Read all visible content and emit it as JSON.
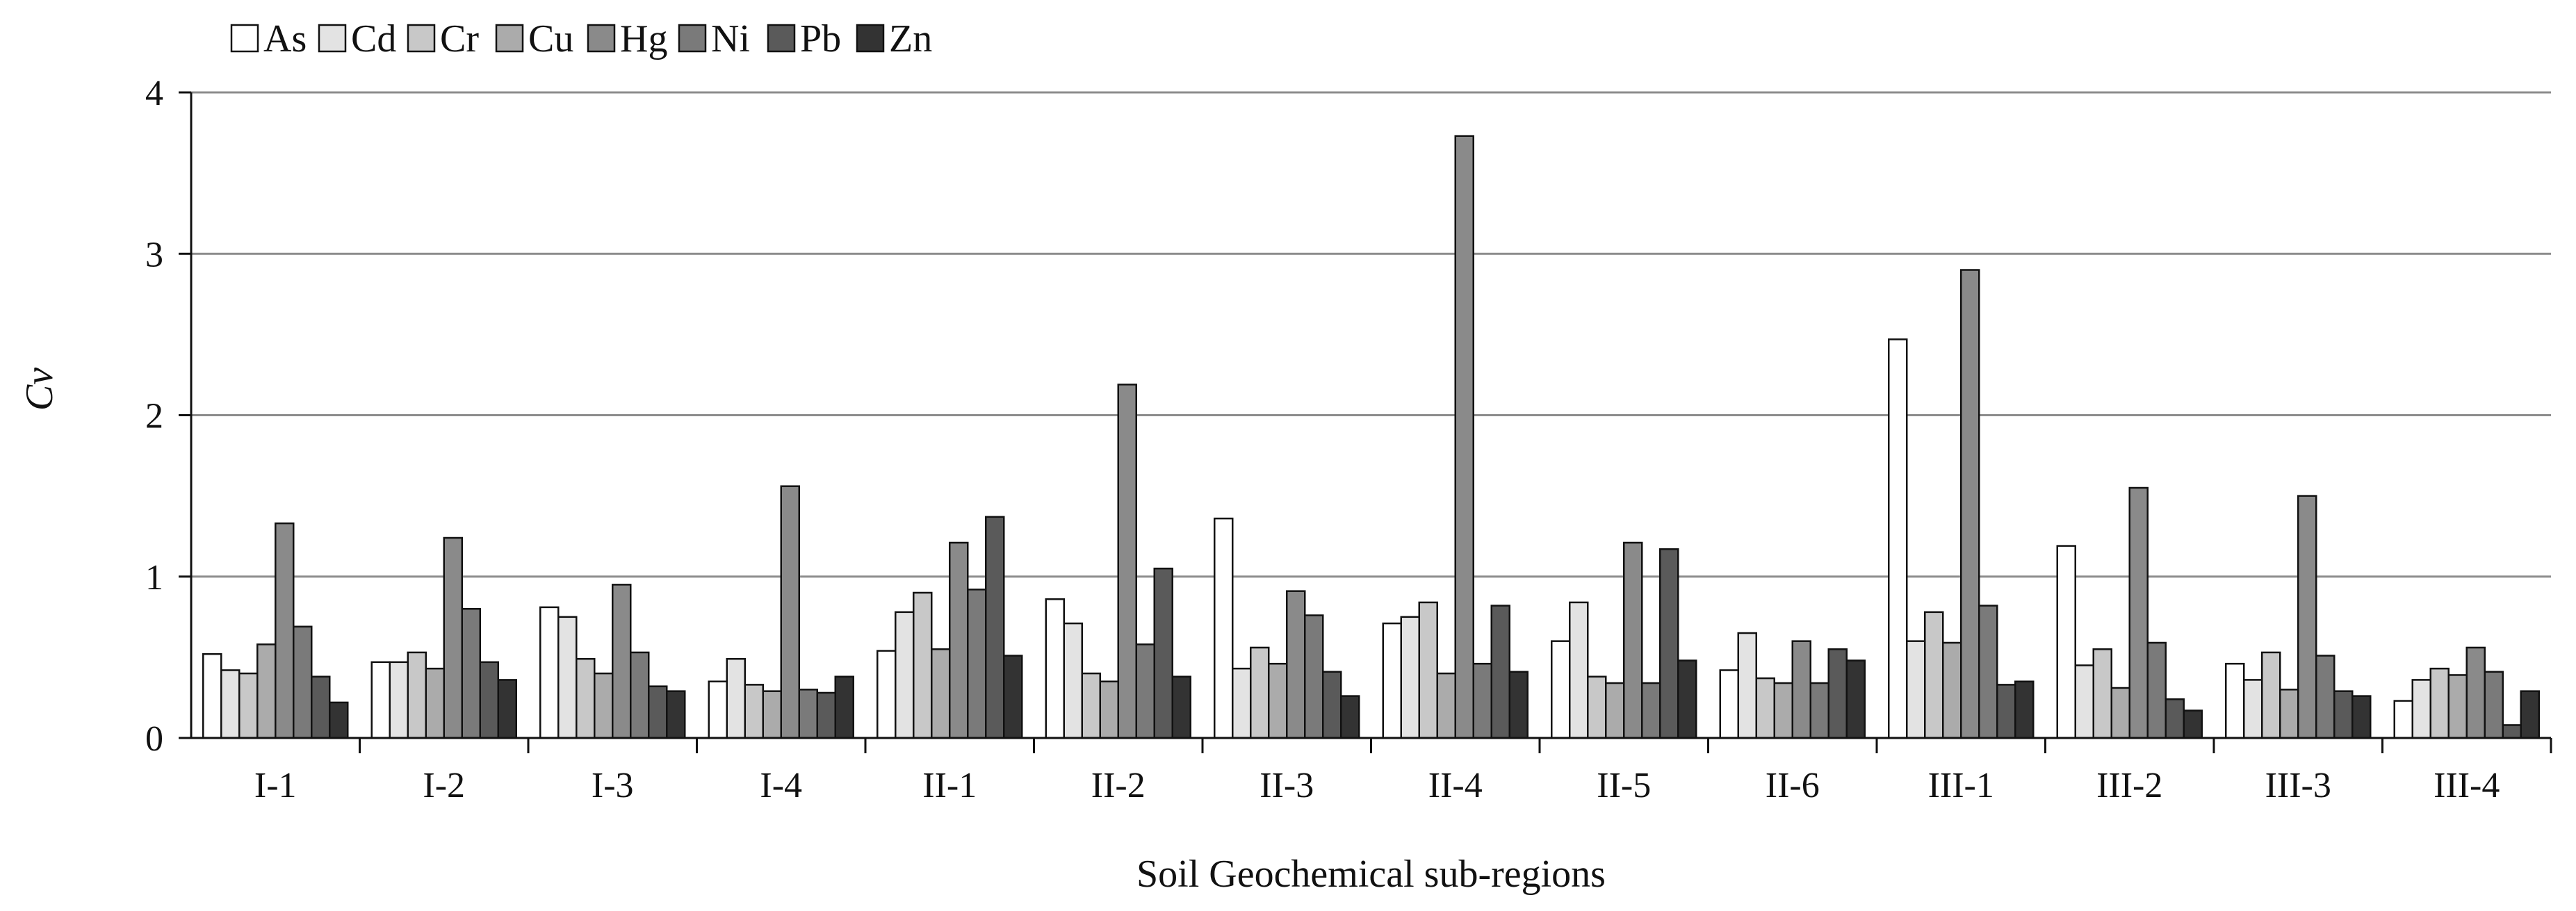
{
  "chart_data": {
    "type": "bar",
    "title": "",
    "xlabel": "Soil Geochemical sub-regions",
    "ylabel": "Cv",
    "ylim": [
      0,
      4
    ],
    "yticks": [
      "0",
      "1",
      "2",
      "3",
      "4"
    ],
    "grid": true,
    "legend_position": "top-left",
    "categories": [
      "I-1",
      "I-2",
      "I-3",
      "I-4",
      "II-1",
      "II-2",
      "II-3",
      "II-4",
      "II-5",
      "II-6",
      "III-1",
      "III-2",
      "III-3",
      "III-4"
    ],
    "series": [
      {
        "name": "As",
        "color": "#ffffff",
        "values": [
          0.52,
          0.47,
          0.81,
          0.35,
          0.54,
          0.86,
          1.36,
          0.71,
          0.6,
          0.42,
          2.47,
          1.19,
          0.46,
          0.23
        ]
      },
      {
        "name": "Cd",
        "color": "#e3e3e3",
        "values": [
          0.42,
          0.47,
          0.75,
          0.49,
          0.78,
          0.71,
          0.43,
          0.75,
          0.84,
          0.65,
          0.6,
          0.45,
          0.36,
          0.36
        ]
      },
      {
        "name": "Cr",
        "color": "#c8c8c8",
        "values": [
          0.4,
          0.53,
          0.49,
          0.33,
          0.9,
          0.4,
          0.56,
          0.84,
          0.38,
          0.37,
          0.78,
          0.55,
          0.53,
          0.43
        ]
      },
      {
        "name": "Cu",
        "color": "#ababab",
        "values": [
          0.58,
          0.43,
          0.4,
          0.29,
          0.55,
          0.35,
          0.46,
          0.4,
          0.34,
          0.34,
          0.59,
          0.31,
          0.3,
          0.39
        ]
      },
      {
        "name": "Hg",
        "color": "#8a8a8a",
        "values": [
          1.33,
          1.24,
          0.95,
          1.56,
          1.21,
          2.19,
          0.91,
          3.73,
          1.21,
          0.6,
          2.9,
          1.55,
          1.5,
          0.56
        ]
      },
      {
        "name": "Ni",
        "color": "#7a7a7a",
        "values": [
          0.69,
          0.8,
          0.53,
          0.3,
          0.92,
          0.58,
          0.76,
          0.46,
          0.34,
          0.34,
          0.82,
          0.59,
          0.51,
          0.41
        ]
      },
      {
        "name": "Pb",
        "color": "#5a5a5a",
        "values": [
          0.38,
          0.47,
          0.32,
          0.28,
          1.37,
          1.05,
          0.41,
          0.82,
          1.17,
          0.55,
          0.33,
          0.24,
          0.29,
          0.08
        ]
      },
      {
        "name": "Zn",
        "color": "#333333",
        "values": [
          0.22,
          0.36,
          0.29,
          0.38,
          0.51,
          0.38,
          0.26,
          0.41,
          0.48,
          0.48,
          0.35,
          0.17,
          0.26,
          0.29
        ]
      }
    ]
  }
}
